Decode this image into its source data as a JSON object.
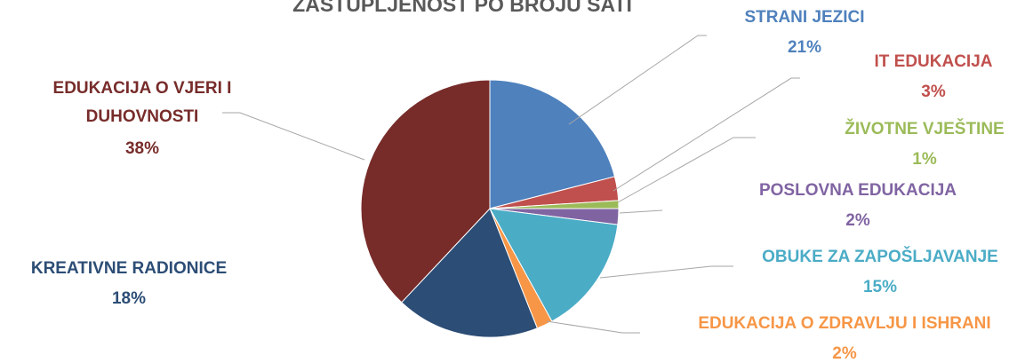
{
  "chart_data": {
    "type": "pie",
    "title": "ZASTUPLJENOST PO BROJU SATI",
    "categories": [
      "STRANI JEZICI",
      "IT EDUKACIJA",
      "ŽIVOTNE VJEŠTINE",
      "POSLOVNA EDUKACIJA",
      "OBUKE ZA ZAPOŠLJAVANJE",
      "EDUKACIJA O ZDRAVLJU I ISHRANI",
      "KREATIVNE RADIONICE",
      "EDUKACIJA O VJERI I DUHOVNOSTI"
    ],
    "values": [
      21,
      3,
      1,
      2,
      15,
      2,
      18,
      38
    ],
    "value_labels": [
      "21%",
      "3%",
      "1%",
      "2%",
      "15%",
      "2%",
      "18%",
      "38%"
    ],
    "colors": [
      "#4f81bd",
      "#c0504d",
      "#9bbb59",
      "#8064a2",
      "#4bacc6",
      "#f79646",
      "#2c4d75",
      "#772c2a"
    ]
  }
}
